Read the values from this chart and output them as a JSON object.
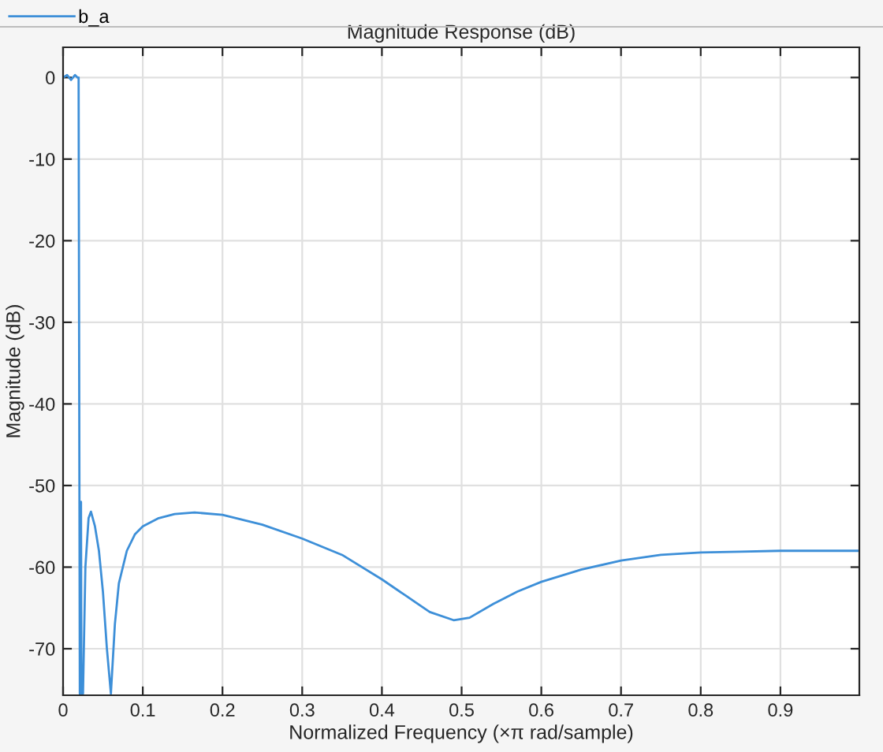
{
  "chart_data": {
    "type": "line",
    "title": "Magnitude Response (dB)",
    "xlabel": "Normalized Frequency (×π rad/sample)",
    "ylabel": "Magnitude (dB)",
    "x": [
      0,
      0.005,
      0.01,
      0.015,
      0.018,
      0.0195,
      0.021,
      0.0215,
      0.022,
      0.0225,
      0.023,
      0.024,
      0.025,
      0.028,
      0.032,
      0.035,
      0.04,
      0.045,
      0.05,
      0.055,
      0.06,
      0.065,
      0.07,
      0.08,
      0.09,
      0.1,
      0.12,
      0.14,
      0.165,
      0.2,
      0.25,
      0.3,
      0.35,
      0.4,
      0.43,
      0.46,
      0.49,
      0.51,
      0.54,
      0.57,
      0.6,
      0.65,
      0.7,
      0.75,
      0.8,
      0.85,
      0.9,
      0.95,
      0.999
    ],
    "series": [
      {
        "name": "b_a",
        "color": "#3d8fd8",
        "values": [
          0,
          0.3,
          -0.3,
          0.3,
          0,
          0,
          -75.5,
          -52,
          -75.5,
          -52,
          -75.5,
          -75.5,
          -75.5,
          -60,
          -54,
          -53.2,
          -55,
          -58,
          -63,
          -70,
          -75.5,
          -67,
          -62,
          -58,
          -56,
          -55,
          -54,
          -53.5,
          -53.3,
          -53.6,
          -54.8,
          -56.5,
          -58.5,
          -61.5,
          -63.5,
          -65.5,
          -66.5,
          -66.2,
          -64.5,
          -63,
          -61.8,
          -60.3,
          -59.2,
          -58.5,
          -58.2,
          -58.1,
          -58,
          -58,
          -58
        ]
      }
    ],
    "xlim": [
      0,
      0.999
    ],
    "ylim": [
      -75.7,
      3.7
    ],
    "xticks": [
      0,
      0.1,
      0.2,
      0.3,
      0.4,
      0.5,
      0.6,
      0.7,
      0.8,
      0.9
    ],
    "yticks": [
      -70,
      -60,
      -50,
      -40,
      -30,
      -20,
      -10,
      0
    ],
    "grid": true,
    "legend": "top left"
  }
}
